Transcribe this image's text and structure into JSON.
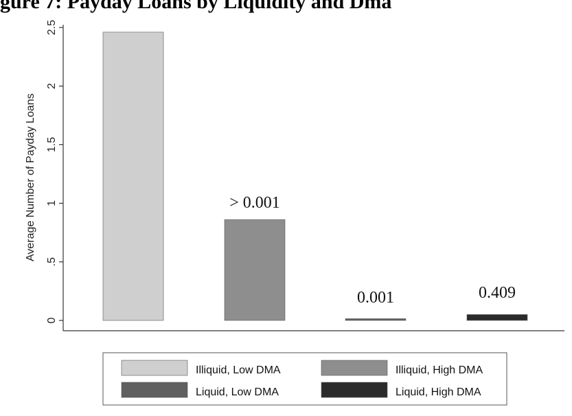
{
  "chart_data": {
    "type": "bar",
    "title": "gure 7: Payday Loans by Liquidity and Dma",
    "ylabel": "Average Number of Payday Loans",
    "xlabel": "",
    "ylim": [
      0,
      2.55
    ],
    "yticks": [
      {
        "value": 0,
        "label": "0"
      },
      {
        "value": 0.5,
        "label": ".5"
      },
      {
        "value": 1,
        "label": "1"
      },
      {
        "value": 1.5,
        "label": "1.5"
      },
      {
        "value": 2,
        "label": "2"
      },
      {
        "value": 2.5,
        "label": "2.5"
      }
    ],
    "categories": [
      "Illiquid, Low DMA",
      "Illiquid, High DMA",
      "Liquid, Low DMA",
      "Liquid, High DMA"
    ],
    "values": [
      2.46,
      0.86,
      0.01,
      0.05
    ],
    "data_labels": [
      "",
      "> 0.001",
      "0.001",
      "0.409"
    ],
    "colors": [
      "#cfcfcf",
      "#8e8e8e",
      "#606060",
      "#2b2b2b"
    ],
    "legend": {
      "placement": "bottom",
      "entries": [
        {
          "label": "Illiquid, Low DMA",
          "color": "#cfcfcf"
        },
        {
          "label": "Illiquid, High DMA",
          "color": "#8e8e8e"
        },
        {
          "label": "Liquid, Low DMA",
          "color": "#606060"
        },
        {
          "label": "Liquid, High DMA",
          "color": "#2b2b2b"
        }
      ]
    },
    "grid": false
  }
}
